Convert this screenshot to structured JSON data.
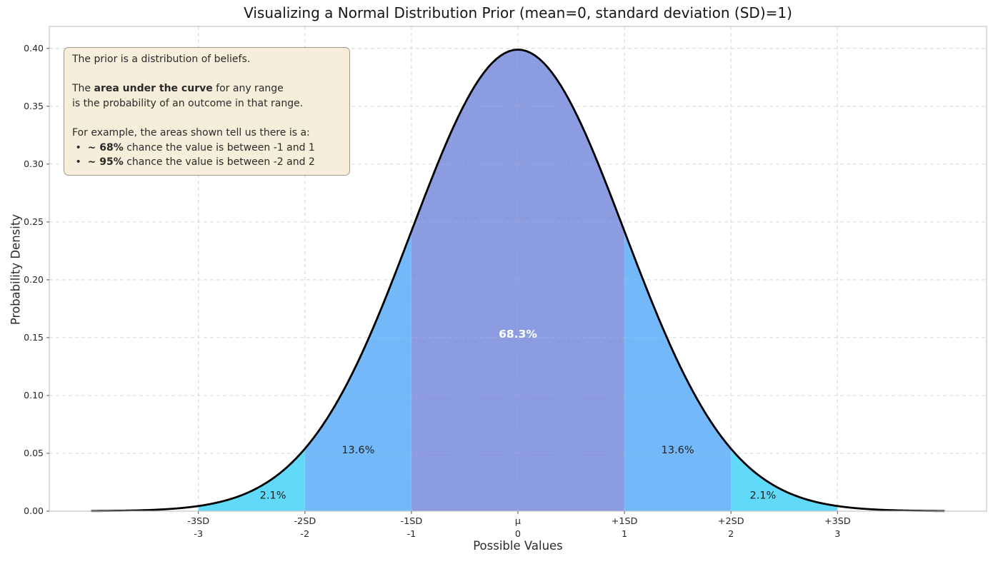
{
  "title": "Visualizing a Normal Distribution Prior (mean=0, standard deviation (SD)=1)",
  "axes": {
    "xlabel": "Possible Values",
    "ylabel": "Probability Density"
  },
  "annotation": {
    "lines": [
      [
        {
          "t": "The prior is a distribution of beliefs.",
          "b": false
        }
      ],
      [],
      [
        {
          "t": "The ",
          "b": false
        },
        {
          "t": "area under the curve",
          "b": true
        },
        {
          "t": " for any range",
          "b": false
        }
      ],
      [
        {
          "t": "is the probability of an outcome in that range.",
          "b": false
        }
      ],
      [],
      [
        {
          "t": "For example, the areas shown tell us there is a:",
          "b": false
        }
      ],
      [
        {
          "t": " •  ",
          "b": false
        },
        {
          "t": "~ 68%",
          "b": true
        },
        {
          "t": " chance the value is between -1 and 1",
          "b": false
        }
      ],
      [
        {
          "t": " •  ",
          "b": false
        },
        {
          "t": "~ 95%",
          "b": true
        },
        {
          "t": " chance the value is between -2 and 2",
          "b": false
        }
      ]
    ],
    "bg_color": "#f6eeda",
    "border_color": "#9f998a"
  },
  "chart_data": {
    "type": "area",
    "title": "Visualizing a Normal Distribution Prior (mean=0, standard deviation (SD)=1)",
    "xlabel": "Possible Values",
    "ylabel": "Probability Density",
    "distribution": "normal",
    "mean": 0,
    "sd": 1,
    "peak_density": 0.3989,
    "curve_range_sd": [
      -4,
      4
    ],
    "xlim": [
      -4.4,
      4.4
    ],
    "ylim": [
      0,
      0.419
    ],
    "grid": true,
    "legend": "none",
    "curve_color": "#000000",
    "grid_color": "#d8d8d8",
    "spine_color": "#c9c9c9",
    "xticks": [
      {
        "x": -3,
        "line1": "-3SD",
        "line2": "-3"
      },
      {
        "x": -2,
        "line1": "-2SD",
        "line2": "-2"
      },
      {
        "x": -1,
        "line1": "-1SD",
        "line2": "-1"
      },
      {
        "x": 0,
        "line1": "μ",
        "line2": "0"
      },
      {
        "x": 1,
        "line1": "+1SD",
        "line2": "1"
      },
      {
        "x": 2,
        "line1": "+2SD",
        "line2": "2"
      },
      {
        "x": 3,
        "line1": "+3SD",
        "line2": "3"
      }
    ],
    "yticks": [
      {
        "v": 0.0,
        "label": "0.00"
      },
      {
        "v": 0.05,
        "label": "0.05"
      },
      {
        "v": 0.1,
        "label": "0.10"
      },
      {
        "v": 0.15,
        "label": "0.15"
      },
      {
        "v": 0.2,
        "label": "0.20"
      },
      {
        "v": 0.25,
        "label": "0.25"
      },
      {
        "v": 0.3,
        "label": "0.30"
      },
      {
        "v": 0.35,
        "label": "0.35"
      },
      {
        "v": 0.4,
        "label": "0.40"
      }
    ],
    "regions": [
      {
        "x_from": -3,
        "x_to": -2,
        "fill": "#61d9f8",
        "percent": "2.1%",
        "label_x": -2.3,
        "label_y": 0.014,
        "label_color": "#1f1f1f",
        "label_bold": false,
        "label_size": 14.5
      },
      {
        "x_from": -2,
        "x_to": -1,
        "fill": "#73b9fa",
        "percent": "13.6%",
        "label_x": -1.5,
        "label_y": 0.053,
        "label_color": "#1f1f1f",
        "label_bold": false,
        "label_size": 14.5
      },
      {
        "x_from": -1,
        "x_to": 1,
        "fill": "#8b9ce1",
        "percent": "68.3%",
        "label_x": 0,
        "label_y": 0.153,
        "label_color": "#ffffff",
        "label_bold": true,
        "label_size": 15.5
      },
      {
        "x_from": 1,
        "x_to": 2,
        "fill": "#73b9fa",
        "percent": "13.6%",
        "label_x": 1.5,
        "label_y": 0.053,
        "label_color": "#1f1f1f",
        "label_bold": false,
        "label_size": 14.5
      },
      {
        "x_from": 2,
        "x_to": 3,
        "fill": "#61d9f8",
        "percent": "2.1%",
        "label_x": 2.3,
        "label_y": 0.014,
        "label_color": "#1f1f1f",
        "label_bold": false,
        "label_size": 14.5
      }
    ]
  }
}
